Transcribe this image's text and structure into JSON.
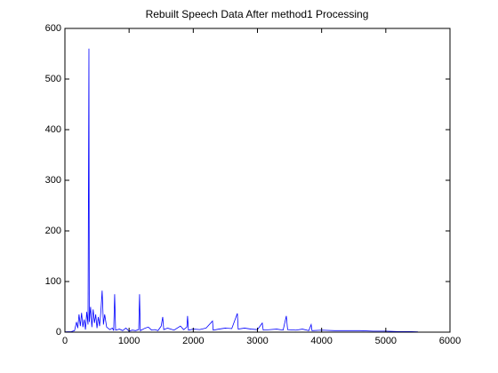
{
  "chart_data": {
    "type": "line",
    "title": "Rebuilt Speech Data After method1 Processing",
    "x": [
      0,
      100,
      150,
      180,
      200,
      220,
      240,
      260,
      280,
      300,
      320,
      340,
      360,
      374,
      380,
      400,
      420,
      440,
      460,
      480,
      500,
      520,
      540,
      560,
      580,
      600,
      620,
      650,
      700,
      740,
      760,
      775,
      790,
      850,
      900,
      950,
      1000,
      1050,
      1100,
      1150,
      1163,
      1175,
      1250,
      1300,
      1350,
      1400,
      1450,
      1500,
      1524,
      1540,
      1600,
      1700,
      1800,
      1850,
      1900,
      1911,
      1925,
      2000,
      2100,
      2200,
      2300,
      2310,
      2400,
      2500,
      2600,
      2687,
      2700,
      2800,
      2900,
      3000,
      3075,
      3090,
      3200,
      3300,
      3400,
      3450,
      3470,
      3600,
      3700,
      3800,
      3837,
      3850,
      4000,
      4200,
      4400,
      4600,
      4800,
      5000,
      5200,
      5400,
      5500
    ],
    "series": [
      {
        "color": "#0000ff",
        "values": [
          0.5,
          1,
          3,
          20,
          8,
          35,
          12,
          38,
          10,
          25,
          5,
          40,
          15,
          560,
          20,
          50,
          10,
          45,
          18,
          35,
          8,
          30,
          12,
          40,
          82,
          15,
          35,
          10,
          5,
          8,
          3,
          75,
          4,
          6,
          3,
          8,
          2,
          4,
          3,
          5,
          75,
          3,
          8,
          10,
          4,
          5,
          3,
          12,
          30,
          5,
          8,
          4,
          12,
          5,
          10,
          32,
          4,
          6,
          5,
          8,
          22,
          4,
          6,
          8,
          7,
          37,
          6,
          8,
          6,
          5,
          18,
          4,
          5,
          6,
          4,
          32,
          5,
          4,
          6,
          3,
          15,
          3,
          4,
          3,
          3,
          3,
          2,
          2,
          1,
          1,
          0.5
        ]
      }
    ],
    "xlim": [
      0,
      6000
    ],
    "xticks": [
      0,
      1000,
      2000,
      3000,
      4000,
      5000,
      6000
    ],
    "ylim": [
      0,
      600
    ],
    "yticks": [
      0,
      100,
      200,
      300,
      400,
      500,
      600
    ]
  }
}
